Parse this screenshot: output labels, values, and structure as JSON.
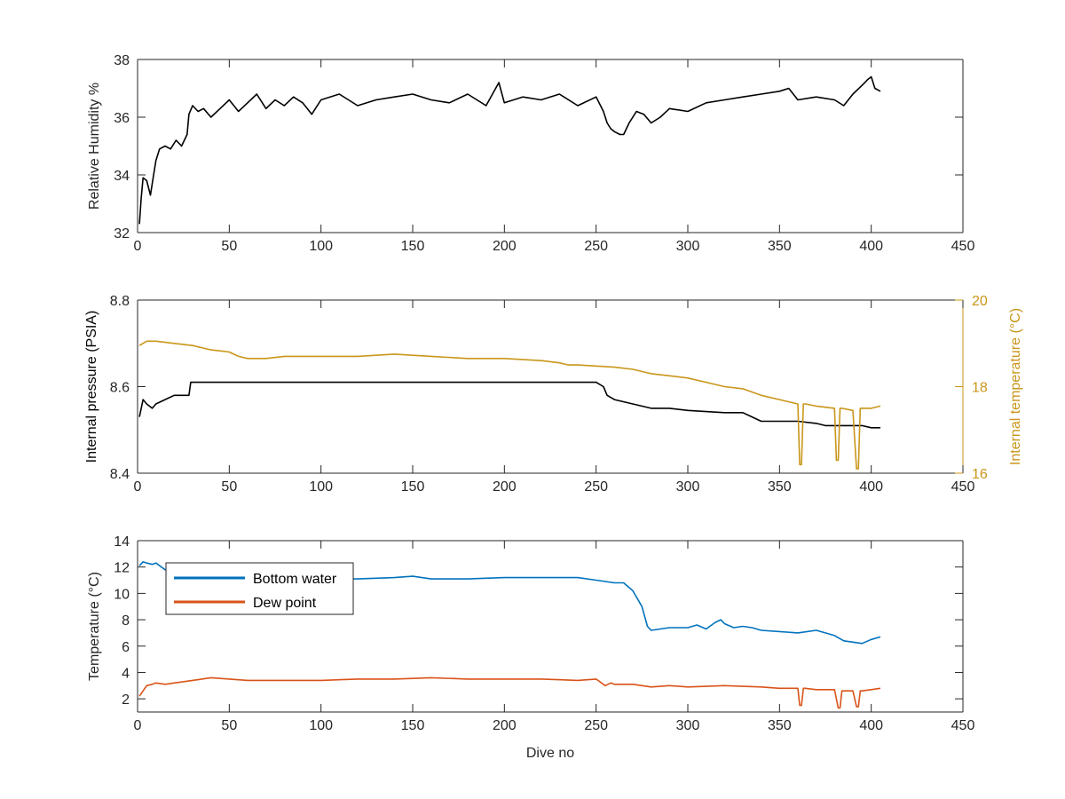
{
  "figure": {
    "background": "#ffffff",
    "axis_color": "#262626",
    "colors": {
      "black_series": "#000000",
      "internal_temp": "#C9961A",
      "bottom_water": "#0072BD",
      "dew_point": "#D95319"
    }
  },
  "chart_data": [
    {
      "type": "line",
      "panel": "humidity",
      "xlabel": "",
      "ylabel": "Relative Humidity %",
      "xlim": [
        0,
        450
      ],
      "ylim": [
        32,
        38
      ],
      "xticks": [
        0,
        50,
        100,
        150,
        200,
        250,
        300,
        350,
        400,
        450
      ],
      "yticks": [
        32,
        34,
        36,
        38
      ],
      "grid": false,
      "series": [
        {
          "color": "#000000",
          "x": [
            1,
            2,
            3,
            5,
            7,
            9,
            10,
            12,
            15,
            18,
            21,
            24,
            27,
            28,
            30,
            33,
            36,
            40,
            45,
            50,
            55,
            60,
            65,
            70,
            75,
            80,
            85,
            90,
            95,
            100,
            110,
            120,
            130,
            140,
            150,
            160,
            170,
            180,
            190,
            197,
            200,
            210,
            220,
            230,
            240,
            250,
            254,
            256,
            258,
            260,
            263,
            265,
            268,
            272,
            276,
            280,
            285,
            290,
            300,
            310,
            320,
            330,
            340,
            350,
            355,
            360,
            370,
            380,
            385,
            390,
            395,
            398,
            400,
            402,
            405
          ],
          "y": [
            32.3,
            33.2,
            33.9,
            33.8,
            33.3,
            34.1,
            34.5,
            34.9,
            35.0,
            34.9,
            35.2,
            35.0,
            35.4,
            36.1,
            36.4,
            36.2,
            36.3,
            36.0,
            36.3,
            36.6,
            36.2,
            36.5,
            36.8,
            36.3,
            36.6,
            36.4,
            36.7,
            36.5,
            36.1,
            36.6,
            36.8,
            36.4,
            36.6,
            36.7,
            36.8,
            36.6,
            36.5,
            36.8,
            36.4,
            37.2,
            36.5,
            36.7,
            36.6,
            36.8,
            36.4,
            36.7,
            36.2,
            35.8,
            35.6,
            35.5,
            35.4,
            35.4,
            35.8,
            36.2,
            36.1,
            35.8,
            36.0,
            36.3,
            36.2,
            36.5,
            36.6,
            36.7,
            36.8,
            36.9,
            37.0,
            36.6,
            36.7,
            36.6,
            36.4,
            36.8,
            37.1,
            37.3,
            37.4,
            37.0,
            36.9
          ]
        }
      ]
    },
    {
      "type": "line",
      "panel": "pressure",
      "xlabel": "",
      "ylabel": "Internal pressure (PSIA)",
      "ylabel_right": "Internal temperature (°C)",
      "xlim": [
        0,
        450
      ],
      "ylim": [
        8.4,
        8.8
      ],
      "ylim_right": [
        16,
        20
      ],
      "xticks": [
        0,
        50,
        100,
        150,
        200,
        250,
        300,
        350,
        400,
        450
      ],
      "yticks": [
        8.4,
        8.6,
        8.8
      ],
      "yticks_right": [
        16,
        18,
        20
      ],
      "series": [
        {
          "axis": "left",
          "color": "#000000",
          "x": [
            1,
            3,
            5,
            8,
            10,
            15,
            20,
            25,
            28,
            29,
            35,
            50,
            100,
            150,
            200,
            250,
            254,
            256,
            260,
            270,
            280,
            290,
            300,
            320,
            330,
            335,
            340,
            360,
            370,
            375,
            380,
            385,
            390,
            395,
            400,
            405
          ],
          "y": [
            8.53,
            8.57,
            8.56,
            8.55,
            8.56,
            8.57,
            8.58,
            8.58,
            8.58,
            8.61,
            8.61,
            8.61,
            8.61,
            8.61,
            8.61,
            8.61,
            8.6,
            8.58,
            8.57,
            8.56,
            8.55,
            8.55,
            8.545,
            8.54,
            8.54,
            8.53,
            8.52,
            8.52,
            8.515,
            8.51,
            8.51,
            8.51,
            8.51,
            8.51,
            8.505,
            8.505
          ]
        },
        {
          "axis": "right",
          "color": "#C9961A",
          "x": [
            1,
            5,
            10,
            20,
            30,
            40,
            50,
            55,
            60,
            70,
            80,
            100,
            120,
            140,
            160,
            180,
            200,
            220,
            230,
            235,
            240,
            260,
            270,
            280,
            290,
            300,
            310,
            320,
            330,
            340,
            350,
            355,
            360,
            361,
            362,
            363,
            364,
            370,
            380,
            381,
            382,
            383,
            384,
            390,
            392,
            393,
            394,
            395,
            400,
            405
          ],
          "y": [
            18.95,
            19.05,
            19.05,
            19.0,
            18.95,
            18.85,
            18.8,
            18.7,
            18.65,
            18.65,
            18.7,
            18.7,
            18.7,
            18.75,
            18.7,
            18.65,
            18.65,
            18.6,
            18.55,
            18.5,
            18.5,
            18.45,
            18.4,
            18.3,
            18.25,
            18.2,
            18.1,
            18.0,
            17.95,
            17.8,
            17.7,
            17.65,
            17.6,
            16.2,
            16.2,
            17.6,
            17.6,
            17.55,
            17.5,
            16.3,
            16.3,
            17.5,
            17.5,
            17.45,
            16.1,
            16.1,
            17.5,
            17.5,
            17.5,
            17.55
          ]
        }
      ]
    },
    {
      "type": "line",
      "panel": "temperature",
      "xlabel": "Dive no",
      "ylabel": "Temperature (°C)",
      "xlim": [
        0,
        450
      ],
      "ylim": [
        1,
        14
      ],
      "xticks": [
        0,
        50,
        100,
        150,
        200,
        250,
        300,
        350,
        400,
        450
      ],
      "yticks": [
        2,
        4,
        6,
        8,
        10,
        12,
        14
      ],
      "legend": "top-left",
      "series": [
        {
          "name": "Bottom water",
          "color": "#0072BD",
          "x": [
            1,
            3,
            5,
            8,
            10,
            15,
            20,
            30,
            40,
            50,
            60,
            70,
            80,
            90,
            100,
            120,
            140,
            150,
            160,
            180,
            200,
            210,
            220,
            240,
            250,
            260,
            265,
            270,
            275,
            278,
            280,
            285,
            290,
            300,
            305,
            310,
            315,
            318,
            320,
            325,
            330,
            335,
            340,
            350,
            360,
            370,
            375,
            380,
            385,
            390,
            395,
            400,
            405
          ],
          "y": [
            12.1,
            12.4,
            12.3,
            12.2,
            12.3,
            11.8,
            11.5,
            11.4,
            11.3,
            11.2,
            11.1,
            11.2,
            11.0,
            11.1,
            11.1,
            11.1,
            11.2,
            11.3,
            11.1,
            11.1,
            11.2,
            11.2,
            11.2,
            11.2,
            11.0,
            10.8,
            10.8,
            10.2,
            9.0,
            7.5,
            7.2,
            7.3,
            7.4,
            7.4,
            7.6,
            7.3,
            7.8,
            8.0,
            7.7,
            7.4,
            7.5,
            7.4,
            7.2,
            7.1,
            7.0,
            7.2,
            7.0,
            6.8,
            6.4,
            6.3,
            6.2,
            6.5,
            6.7
          ]
        },
        {
          "name": "Dew point",
          "color": "#D95319",
          "x": [
            1,
            3,
            5,
            8,
            10,
            15,
            20,
            30,
            40,
            50,
            60,
            80,
            100,
            120,
            140,
            160,
            180,
            200,
            220,
            240,
            250,
            255,
            258,
            260,
            270,
            280,
            290,
            300,
            320,
            340,
            350,
            360,
            361,
            362,
            363,
            364,
            370,
            380,
            382,
            383,
            384,
            385,
            390,
            392,
            393,
            394,
            395,
            400,
            405
          ],
          "y": [
            2.2,
            2.6,
            3.0,
            3.1,
            3.2,
            3.1,
            3.2,
            3.4,
            3.6,
            3.5,
            3.4,
            3.4,
            3.4,
            3.5,
            3.5,
            3.6,
            3.5,
            3.5,
            3.5,
            3.4,
            3.5,
            3.0,
            3.2,
            3.1,
            3.1,
            2.9,
            3.0,
            2.9,
            3.0,
            2.9,
            2.8,
            2.8,
            1.5,
            1.5,
            2.8,
            2.8,
            2.7,
            2.7,
            1.3,
            1.3,
            2.6,
            2.6,
            2.6,
            1.4,
            1.4,
            2.6,
            2.6,
            2.7,
            2.8
          ]
        }
      ]
    }
  ]
}
